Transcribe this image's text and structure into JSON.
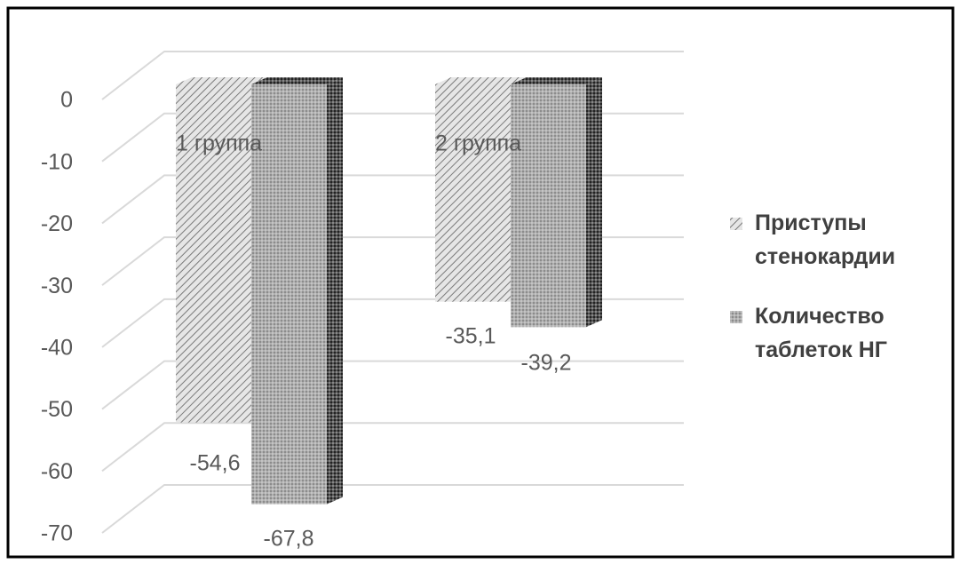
{
  "chart_data": {
    "type": "bar3d",
    "categories": [
      "1 группа",
      "2 группа"
    ],
    "series": [
      {
        "name": "Приступы стенокардии",
        "color": "#b8b8b8",
        "values": [
          -54.6,
          -35.1
        ],
        "value_labels": [
          "-54,6",
          "-35,1"
        ]
      },
      {
        "name": "Количество таблеток НГ",
        "color": "#a0a0a0",
        "values": [
          -67.8,
          -39.2
        ],
        "value_labels": [
          "-67,8",
          "-39,2"
        ]
      }
    ],
    "ylim": [
      -70,
      0
    ],
    "yticks": [
      0,
      -10,
      -20,
      -30,
      -40,
      -50,
      -60,
      -70
    ],
    "grid": true,
    "legend": "right"
  }
}
